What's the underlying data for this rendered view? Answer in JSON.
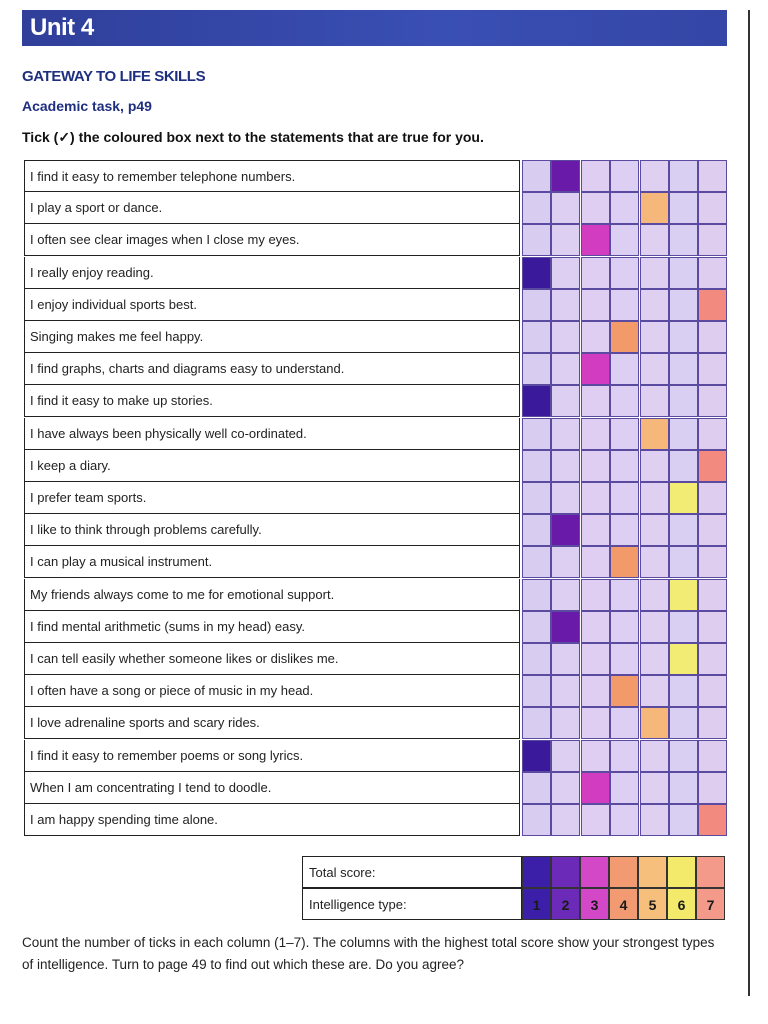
{
  "header": {
    "unit_title": "Unit 4"
  },
  "section_title": "GATEWAY TO LIFE SKILLS",
  "subsection_title": "Academic task, p49",
  "instruction": "Tick (✓) the coloured box next to the statements that are true for you.",
  "statements": [
    {
      "text": "I find it easy to remember telephone numbers.",
      "type": 2
    },
    {
      "text": "I play a sport or dance.",
      "type": 5
    },
    {
      "text": "I often see clear images when I close my eyes.",
      "type": 3
    },
    {
      "text": "I really enjoy reading.",
      "type": 1
    },
    {
      "text": "I enjoy individual sports best.",
      "type": 7
    },
    {
      "text": "Singing makes me feel happy.",
      "type": 4
    },
    {
      "text": "I find graphs, charts and diagrams easy to understand.",
      "type": 3
    },
    {
      "text": "I find it easy to make up stories.",
      "type": 1
    },
    {
      "text": "I have always been physically well co-ordinated.",
      "type": 5
    },
    {
      "text": "I keep a diary.",
      "type": 7
    },
    {
      "text": "I prefer team sports.",
      "type": 6
    },
    {
      "text": "I like to think through problems carefully.",
      "type": 2
    },
    {
      "text": "I can play a musical instrument.",
      "type": 4
    },
    {
      "text": "My friends always come to me for emotional support.",
      "type": 6
    },
    {
      "text": "I find mental arithmetic (sums in my head) easy.",
      "type": 2
    },
    {
      "text": "I can tell easily whether someone likes or dislikes me.",
      "type": 6
    },
    {
      "text": "I often have a song or piece of music in my head.",
      "type": 4
    },
    {
      "text": "I love adrenaline sports and scary rides.",
      "type": 5
    },
    {
      "text": "I find it easy to remember poems or song lyrics.",
      "type": 1
    },
    {
      "text": "When I am concentrating I tend to doodle.",
      "type": 3
    },
    {
      "text": "I am happy spending time alone.",
      "type": 7
    }
  ],
  "summary": {
    "total_label": "Total score:",
    "type_label": "Intelligence type:",
    "type_numbers": [
      "1",
      "2",
      "3",
      "4",
      "5",
      "6",
      "7"
    ]
  },
  "footer_text": "Count the number of ticks in each column (1–7). The columns with the highest total score show your strongest types of intelligence. Turn to page 49 to find out which these are. Do you agree?",
  "colors": {
    "brand_blue": "#3446a6",
    "type_1": "#3a1a9a",
    "type_2": "#6a1aa8",
    "type_3": "#d23cc0",
    "type_4": "#f29a6a",
    "type_5": "#f6b87a",
    "type_6": "#f3ec74",
    "type_7": "#f38a80"
  }
}
